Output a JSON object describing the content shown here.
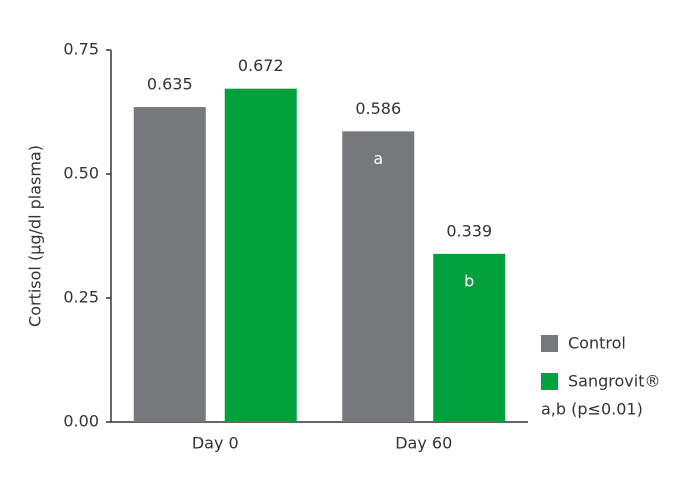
{
  "chart_data": {
    "type": "bar",
    "y_label": "Cortisol (µg/dl plasma)",
    "categories": [
      "Day 0",
      "Day 60"
    ],
    "series": [
      {
        "name": "Control",
        "color": "#77787b",
        "values": [
          0.635,
          0.586
        ],
        "bar_letters": [
          null,
          "a"
        ]
      },
      {
        "name": "Sangrovit®",
        "color": "#00a03c",
        "values": [
          0.672,
          0.339
        ],
        "bar_letters": [
          null,
          "b"
        ]
      }
    ],
    "ylim": [
      0,
      0.75
    ],
    "yticks": [
      {
        "value": 0,
        "label": "0.00"
      },
      {
        "value": 0.25,
        "label": "0.25"
      },
      {
        "value": 0.5,
        "label": "0.50"
      },
      {
        "value": 0.75,
        "label": "0.75"
      }
    ],
    "legend": "right",
    "note": "a,b (p≤0.01)"
  }
}
